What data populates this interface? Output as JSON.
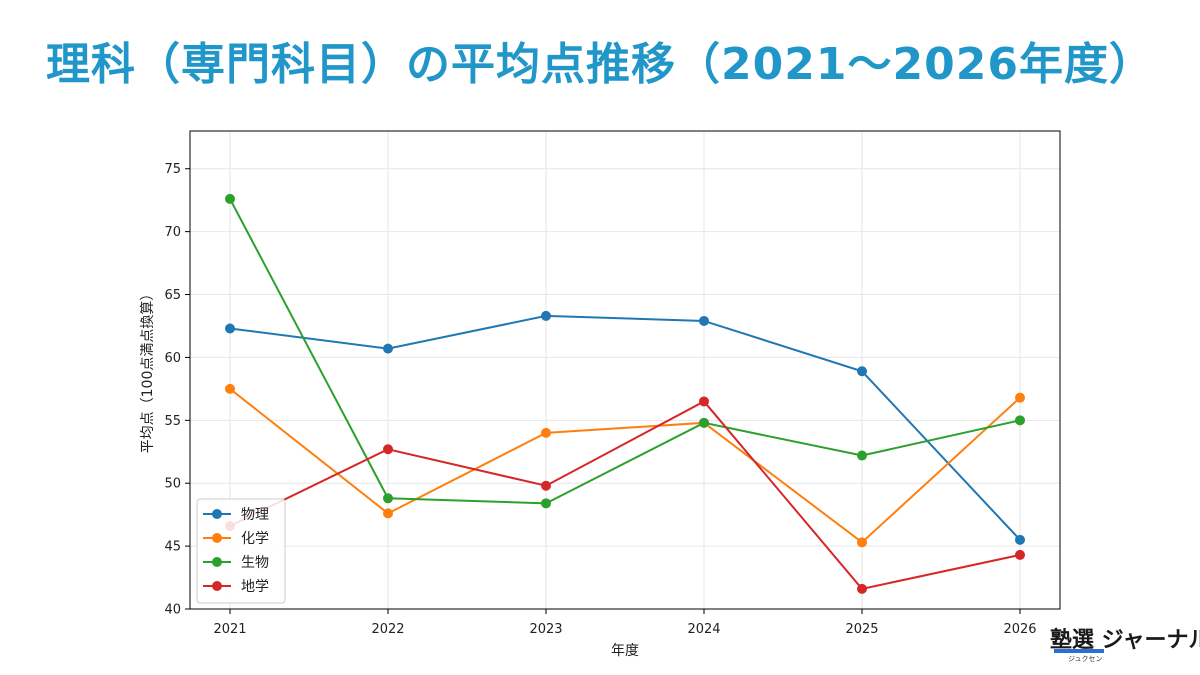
{
  "title": "理科（専門科目）の平均点推移（2021〜2026年度）",
  "logo": {
    "main": "塾選 ジャーナル",
    "sub": "ジュクセン"
  },
  "chart_data": {
    "type": "line",
    "title": "",
    "xlabel": "年度",
    "ylabel": "平均点（100点満点換算）",
    "categories": [
      "2021",
      "2022",
      "2023",
      "2024",
      "2025",
      "2026"
    ],
    "ylim": [
      40,
      78
    ],
    "yticks": [
      40,
      45,
      50,
      55,
      60,
      65,
      70,
      75
    ],
    "grid": true,
    "legend_position": "lower-left",
    "series": [
      {
        "name": "物理",
        "color": "#1f77b4",
        "values": [
          62.3,
          60.7,
          63.3,
          62.9,
          58.9,
          45.5
        ]
      },
      {
        "name": "化学",
        "color": "#ff7f0e",
        "values": [
          57.5,
          47.6,
          54.0,
          54.8,
          45.3,
          56.8
        ]
      },
      {
        "name": "生物",
        "color": "#2ca02c",
        "values": [
          72.6,
          48.8,
          48.4,
          54.8,
          52.2,
          55.0
        ]
      },
      {
        "name": "地学",
        "color": "#d62728",
        "values": [
          46.6,
          52.7,
          49.8,
          56.5,
          41.6,
          44.3
        ]
      }
    ]
  }
}
